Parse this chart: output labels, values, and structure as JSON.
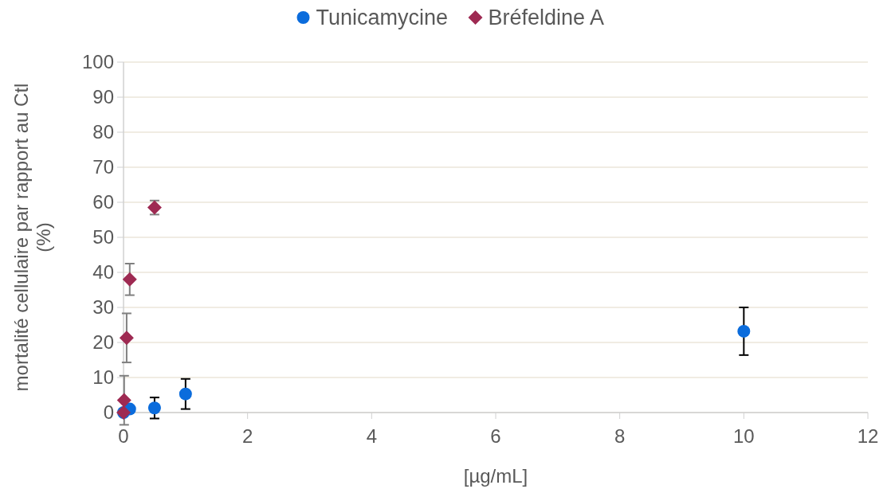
{
  "chart_data": {
    "type": "scatter",
    "xlabel": "[µg/mL]",
    "ylabel": "mortalité cellulaire par rapport au Ctl (%)",
    "xlim": [
      0,
      12
    ],
    "xticks": [
      0,
      2,
      4,
      6,
      8,
      10,
      12
    ],
    "ylim": [
      0,
      100
    ],
    "yticks": [
      0,
      10,
      20,
      30,
      40,
      50,
      60,
      70,
      80,
      90,
      100
    ],
    "grid": "y",
    "legend": "top",
    "series": [
      {
        "name": "Tunicamycine",
        "color": "#0b6cdc",
        "marker": "circle",
        "x": [
          0,
          0.1,
          0.5,
          1,
          10
        ],
        "values": [
          0,
          1,
          1.3,
          5.3,
          23.2
        ],
        "errors": [
          null,
          null,
          3,
          4.3,
          6.8
        ]
      },
      {
        "name": "Bréfeldine A",
        "color": "#9e2a52",
        "marker": "diamond",
        "x": [
          0,
          0.01,
          0.05,
          0.1,
          0.5
        ],
        "values": [
          0,
          3.5,
          21.3,
          38,
          58.5
        ],
        "errors": [
          null,
          7,
          7,
          4.5,
          2
        ]
      }
    ]
  }
}
